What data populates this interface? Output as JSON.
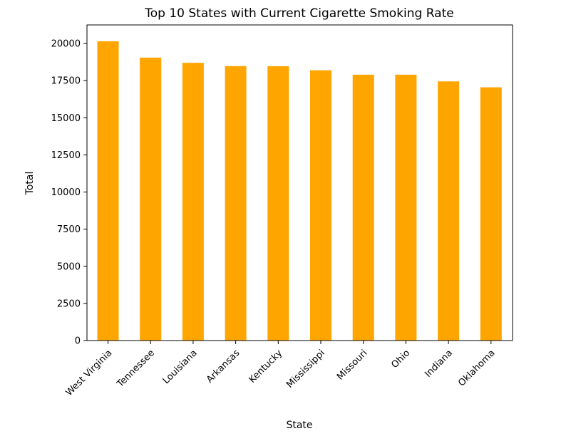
{
  "chart_data": {
    "type": "bar",
    "title": "Top 10 States with Current Cigarette Smoking Rate",
    "xlabel": "State",
    "ylabel": "Total",
    "categories": [
      "West Virginia",
      "Tennessee",
      "Louisiana",
      "Arkansas",
      "Kentucky",
      "Mississippi",
      "Missouri",
      "Ohio",
      "Indiana",
      "Oklahoma"
    ],
    "values": [
      20150,
      19050,
      18700,
      18480,
      18470,
      18200,
      17900,
      17900,
      17450,
      17050
    ],
    "ylim": [
      0,
      21250
    ],
    "yticks": [
      0,
      2500,
      5000,
      7500,
      10000,
      12500,
      15000,
      17500,
      20000
    ],
    "bar_color": "#ffa500",
    "grid": false
  }
}
